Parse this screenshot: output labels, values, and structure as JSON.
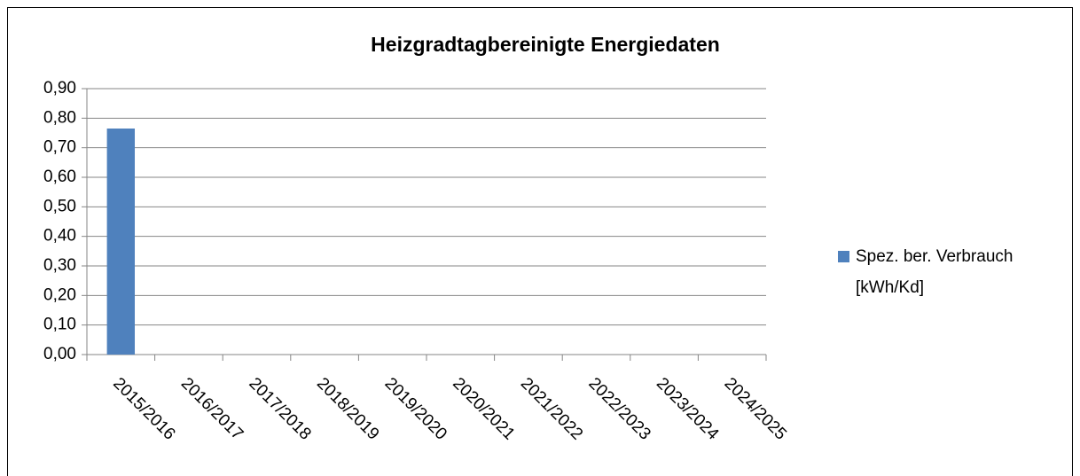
{
  "chart_data": {
    "type": "bar",
    "title": "Heizgradtagbereinigte Energiedaten",
    "categories": [
      "2015/2016",
      "2016/2017",
      "2017/2018",
      "2018/2019",
      "2019/2020",
      "2020/2021",
      "2021/2022",
      "2022/2023",
      "2023/2024",
      "2024/2025"
    ],
    "series": [
      {
        "name": "Spez. ber. Verbrauch [kWh/Kd]",
        "color": "#4f81bd",
        "values": [
          0.765,
          null,
          null,
          null,
          null,
          null,
          null,
          null,
          null,
          null
        ]
      }
    ],
    "ylim": [
      0,
      0.9
    ],
    "yticks": [
      {
        "value": 0,
        "label": "0,00"
      },
      {
        "value": 0.1,
        "label": "0,10"
      },
      {
        "value": 0.2,
        "label": "0,20"
      },
      {
        "value": 0.3,
        "label": "0,30"
      },
      {
        "value": 0.4,
        "label": "0,40"
      },
      {
        "value": 0.5,
        "label": "0,50"
      },
      {
        "value": 0.6,
        "label": "0,60"
      },
      {
        "value": 0.7,
        "label": "0,70"
      },
      {
        "value": 0.8,
        "label": "0,80"
      },
      {
        "value": 0.9,
        "label": "0,90"
      }
    ],
    "grid": true,
    "legend": "right"
  }
}
